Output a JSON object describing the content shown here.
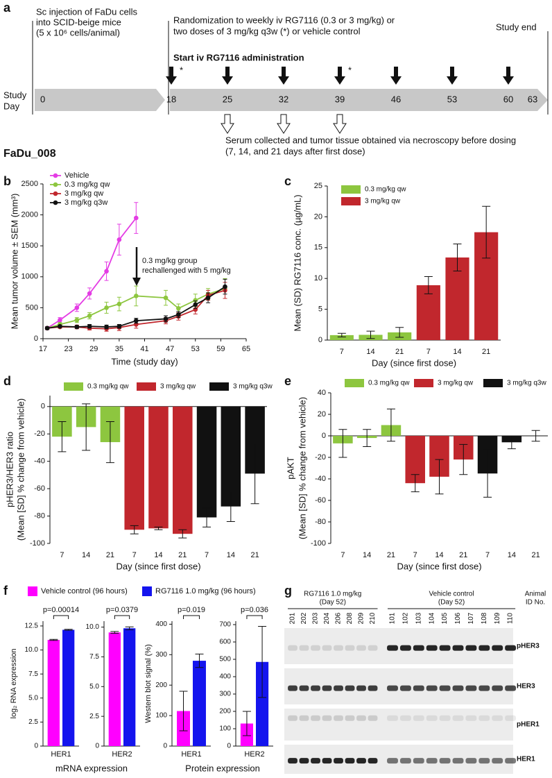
{
  "panel_a": {
    "label": "a",
    "injection": [
      "Sc injection of FaDu cells",
      "into SCID-beige mice",
      "(5 x 10⁶ cells/animal)"
    ],
    "randomization": [
      "Randomization to weekly iv RG7116 (0.3 or 3 mg/kg) or",
      "two doses of 3 mg/kg q3w (*) or vehicle control"
    ],
    "study_end": "Study end",
    "start": "Start iv RG7116 administration",
    "axis_label": [
      "Study",
      "Day"
    ],
    "days": [
      0,
      18,
      25,
      32,
      39,
      46,
      53,
      60,
      63
    ],
    "q3w_mark": "*",
    "sampling": [
      "Serum collected and tumor tissue obtained via necroscopy before dosing",
      "(7, 14, and 21 days after first dose)"
    ],
    "study_id": "FaDu_008"
  },
  "chart_data": [
    {
      "type": "line",
      "panel": "b",
      "xlabel": "Time (study day)",
      "ylabel": [
        "Mean tumor volume ± SEM (mm³)"
      ],
      "xlim": [
        17,
        65
      ],
      "xticks": [
        17,
        23,
        29,
        35,
        41,
        47,
        53,
        59,
        65
      ],
      "ylim": [
        0,
        2500
      ],
      "yticks": [
        0,
        500,
        1000,
        1500,
        2000,
        2500
      ],
      "annotation": [
        "0.3 mg/kg group",
        "rechallenged with 5 mg/kg"
      ],
      "series": [
        {
          "name": "Vehicle",
          "color": "#e43ce4",
          "x": [
            18,
            21,
            25,
            28,
            32,
            35,
            39
          ],
          "values": [
            170,
            300,
            500,
            730,
            1090,
            1600,
            1950
          ],
          "errors": [
            25,
            40,
            60,
            90,
            150,
            250,
            250
          ]
        },
        {
          "name": "0.3 mg/kg qw",
          "color": "#8dc63f",
          "x": [
            18,
            21,
            25,
            28,
            32,
            35,
            39,
            46,
            49,
            53,
            56,
            60
          ],
          "values": [
            170,
            230,
            300,
            370,
            500,
            560,
            690,
            660,
            490,
            620,
            720,
            810
          ],
          "errors": [
            20,
            30,
            40,
            50,
            90,
            110,
            160,
            120,
            70,
            100,
            90,
            160
          ]
        },
        {
          "name": "3 mg/kg qw",
          "color": "#c1272d",
          "x": [
            18,
            21,
            25,
            28,
            32,
            35,
            39,
            46,
            49,
            53,
            56,
            60
          ],
          "values": [
            170,
            190,
            190,
            170,
            160,
            180,
            230,
            290,
            360,
            470,
            700,
            780
          ],
          "errors": [
            20,
            20,
            30,
            30,
            40,
            50,
            60,
            50,
            60,
            70,
            80,
            130
          ]
        },
        {
          "name": "3 mg/kg q3w",
          "color": "#111111",
          "x": [
            18,
            21,
            25,
            28,
            32,
            35,
            39,
            46,
            49,
            53,
            56,
            60
          ],
          "values": [
            170,
            200,
            190,
            200,
            190,
            200,
            290,
            320,
            390,
            550,
            660,
            840
          ],
          "errors": [
            20,
            20,
            20,
            30,
            30,
            30,
            40,
            50,
            50,
            60,
            80,
            120
          ]
        }
      ]
    },
    {
      "type": "bar",
      "panel": "c",
      "xlabel": "Day (since first dose)",
      "ylabel": [
        "Mean (SD) RG7116 conc. (µg/mL)"
      ],
      "categories": [
        "7",
        "14",
        "21",
        "7",
        "14",
        "21"
      ],
      "ylim": [
        0,
        25
      ],
      "yticks": [
        0,
        5,
        10,
        15,
        20,
        25
      ],
      "series": [
        {
          "name": "0.3 mg/kg qw",
          "color": "#8dc63f",
          "values": [
            0.8,
            0.85,
            1.25,
            null,
            null,
            null
          ],
          "errors": [
            0.3,
            0.6,
            0.8,
            null,
            null,
            null
          ]
        },
        {
          "name": "3 mg/kg qw",
          "color": "#c1272d",
          "values": [
            null,
            null,
            null,
            8.9,
            13.4,
            17.5
          ],
          "errors": [
            null,
            null,
            null,
            1.4,
            2.2,
            4.2
          ]
        }
      ]
    },
    {
      "type": "bar",
      "panel": "d",
      "xlabel": "Day (since first dose)",
      "ylabel": [
        "pHER3/HER3 ratio",
        "(Mean [SD] % change from vehicle)"
      ],
      "categories": [
        "7",
        "14",
        "21",
        "7",
        "14",
        "21",
        "7",
        "14",
        "21"
      ],
      "ylim": [
        -100,
        8
      ],
      "yticks": [
        0,
        -20,
        -40,
        -60,
        -80,
        -100
      ],
      "series": [
        {
          "name": "0.3 mg/kg qw",
          "color": "#8dc63f",
          "values": [
            -22,
            -15,
            -26,
            null,
            null,
            null,
            null,
            null,
            null
          ],
          "errors": [
            11,
            17,
            15,
            null,
            null,
            null,
            null,
            null,
            null
          ]
        },
        {
          "name": "3 mg/kg qw",
          "color": "#c1272d",
          "values": [
            null,
            null,
            null,
            -90,
            -89,
            -93,
            null,
            null,
            null
          ],
          "errors": [
            null,
            null,
            null,
            3,
            1,
            3,
            null,
            null,
            null
          ]
        },
        {
          "name": "3 mg/kg q3w",
          "color": "#111111",
          "values": [
            null,
            null,
            null,
            null,
            null,
            null,
            -81,
            -73,
            -49
          ],
          "errors": [
            null,
            null,
            null,
            null,
            null,
            null,
            7,
            11,
            22
          ]
        }
      ]
    },
    {
      "type": "bar",
      "panel": "e",
      "xlabel": "Day (since first dose)",
      "ylabel": [
        "pAKT",
        "(Mean [SD] % change from vehicle)"
      ],
      "categories": [
        "7",
        "14",
        "21",
        "7",
        "14",
        "21",
        "7",
        "14",
        "21"
      ],
      "ylim": [
        -100,
        40
      ],
      "yticks": [
        40,
        20,
        0,
        -20,
        -40,
        -60,
        -80,
        -100
      ],
      "series": [
        {
          "name": "0.3 mg/kg qw",
          "color": "#8dc63f",
          "values": [
            -7,
            -2,
            10,
            null,
            null,
            null,
            null,
            null,
            null
          ],
          "errors": [
            13,
            8,
            15,
            null,
            null,
            null,
            null,
            null,
            null
          ]
        },
        {
          "name": "3 mg/kg qw",
          "color": "#c1272d",
          "values": [
            null,
            null,
            null,
            -44,
            -38,
            -22,
            null,
            null,
            null
          ],
          "errors": [
            null,
            null,
            null,
            8,
            16,
            14,
            null,
            null,
            null
          ]
        },
        {
          "name": "3 mg/kg q3w",
          "color": "#111111",
          "values": [
            null,
            null,
            null,
            null,
            null,
            null,
            -35,
            -6,
            0
          ],
          "errors": [
            null,
            null,
            null,
            null,
            null,
            null,
            22,
            6,
            5
          ]
        }
      ]
    },
    {
      "type": "bar",
      "panel": "f",
      "xlabel": "mRNA expression",
      "ylabel": [
        "log₂ RNA expression"
      ],
      "annotation": "p=0.00014",
      "categories": [
        "HER1"
      ],
      "ylim": [
        0,
        13
      ],
      "yticks": [
        0,
        2.5,
        {
          "value": 5,
          "label": "5.0"
        },
        7.5,
        {
          "value": 10,
          "label": "10.0"
        },
        12.5
      ],
      "series": [
        {
          "name": "Vehicle control (96 hours)",
          "color": "#ff00ff",
          "values": [
            11.05
          ],
          "errors": [
            0.05
          ]
        },
        {
          "name": "RG7116 1.0 mg/kg (96 hours)",
          "color": "#1414ee",
          "values": [
            12.1
          ],
          "errors": [
            0.05
          ]
        }
      ]
    },
    {
      "type": "bar",
      "annotation": "p=0.0379",
      "categories": [
        "HER2"
      ],
      "ylim": [
        0,
        10.5
      ],
      "yticks": [
        0,
        2.5,
        {
          "value": 5,
          "label": "5.0"
        },
        7.5,
        {
          "value": 10,
          "label": "10.0"
        }
      ],
      "series": [
        {
          "color": "#ff00ff",
          "values": [
            9.55
          ],
          "errors": [
            0.08
          ]
        },
        {
          "color": "#1414ee",
          "values": [
            9.9
          ],
          "errors": [
            0.12
          ]
        }
      ]
    },
    {
      "type": "bar",
      "xlabel": "Protein expression",
      "ylabel": [
        "Western blot signal (%)"
      ],
      "annotation": "p=0.019",
      "categories": [
        "HER1"
      ],
      "ylim": [
        0,
        410
      ],
      "yticks": [
        0,
        100,
        200,
        300,
        400
      ],
      "series": [
        {
          "color": "#ff00ff",
          "values": [
            115
          ],
          "errors": [
            65
          ]
        },
        {
          "color": "#1414ee",
          "values": [
            280
          ],
          "errors": [
            22
          ]
        }
      ]
    },
    {
      "type": "bar",
      "annotation": "p=0.036",
      "categories": [
        "HER2"
      ],
      "ylim": [
        0,
        720
      ],
      "yticks": [
        0,
        100,
        200,
        300,
        400,
        500,
        600,
        700
      ],
      "series": [
        {
          "color": "#ff00ff",
          "values": [
            130
          ],
          "errors": [
            70
          ]
        },
        {
          "color": "#1414ee",
          "values": [
            485
          ],
          "errors": [
            205
          ]
        }
      ]
    }
  ],
  "panel_g": {
    "label": "g",
    "groups": [
      {
        "title": [
          "RG7116 1.0 mg/kg",
          "(Day 52)"
        ],
        "lanes": [
          "201",
          "202",
          "203",
          "204",
          "206",
          "208",
          "209",
          "210"
        ]
      },
      {
        "title": [
          "Vehicle control",
          "(Day 52)"
        ],
        "lanes": [
          "101",
          "102",
          "103",
          "104",
          "105",
          "106",
          "107",
          "108",
          "109",
          "110"
        ]
      }
    ],
    "id_label": [
      "Animal",
      "ID No."
    ],
    "rows": [
      "pHER3",
      "HER3",
      "pHER1",
      "HER1"
    ]
  }
}
